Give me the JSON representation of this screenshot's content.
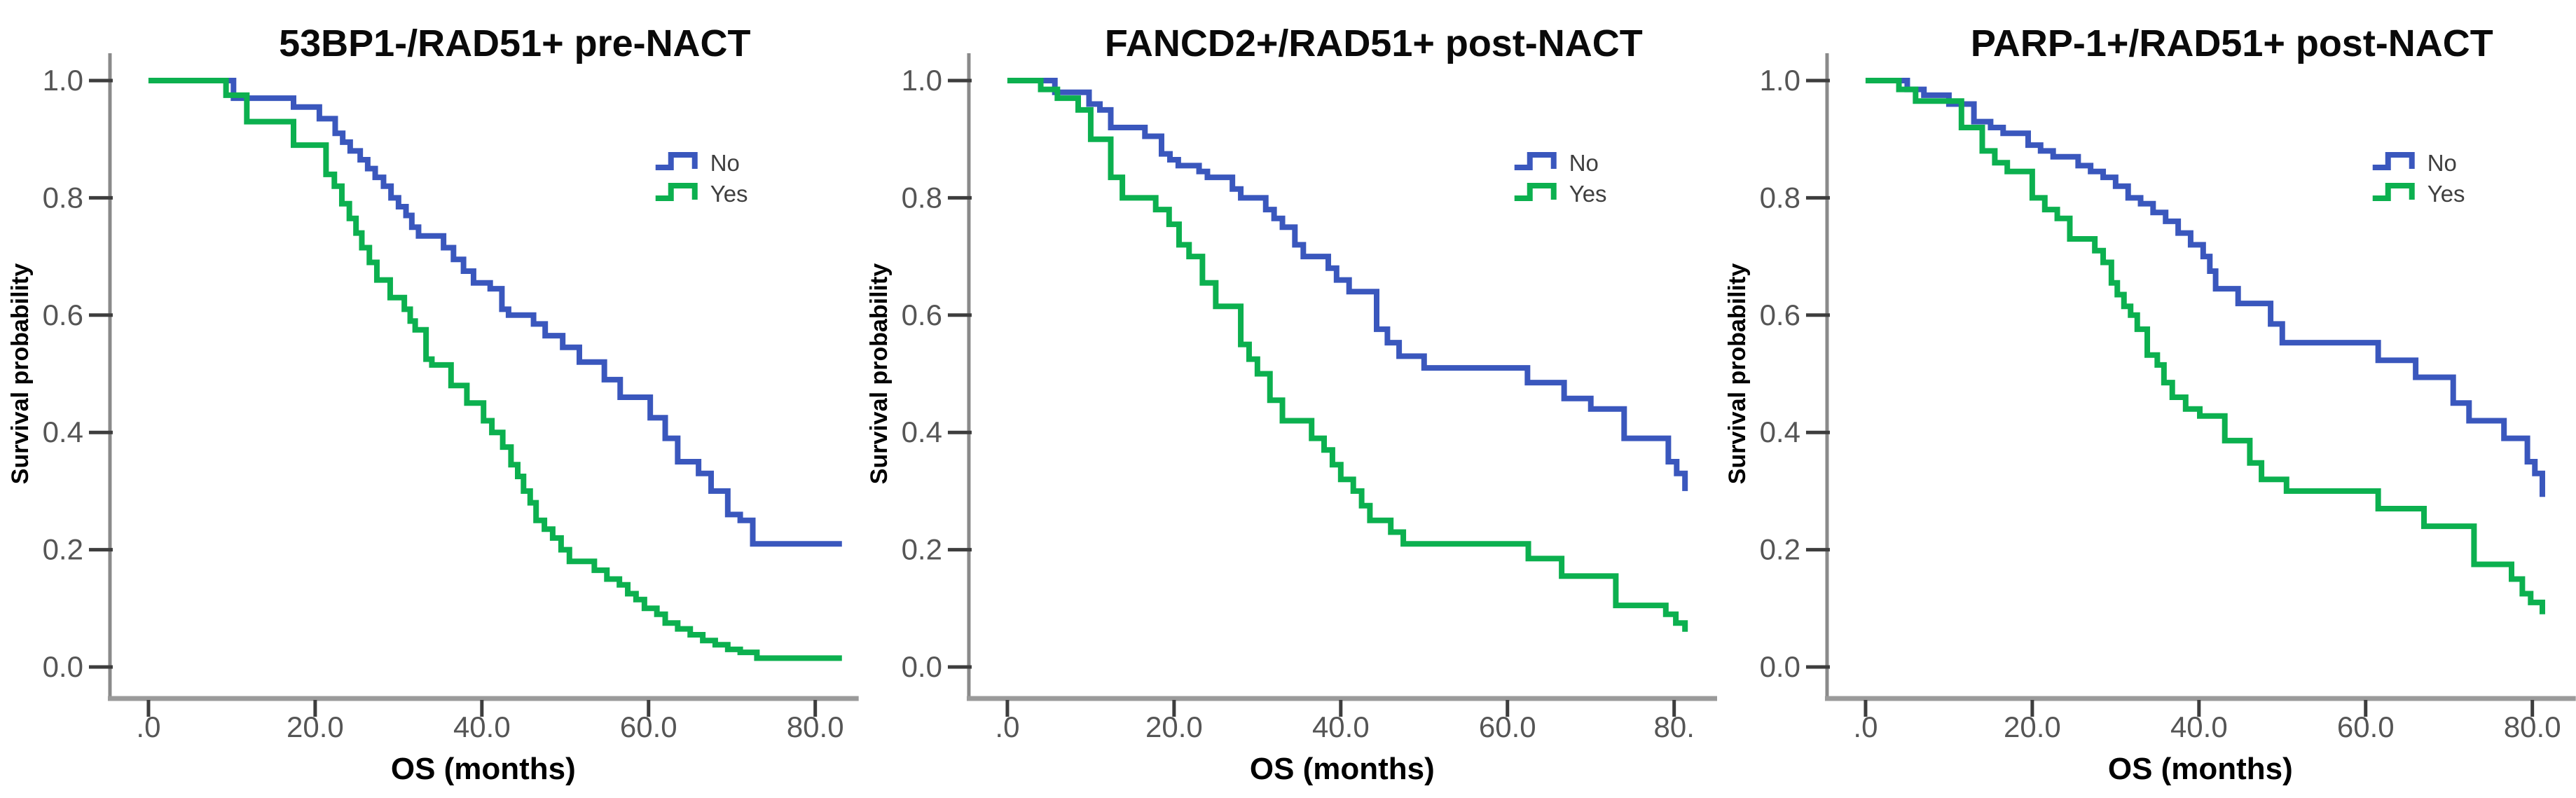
{
  "figure": {
    "description": "Three Kaplan-Meier overall-survival plots",
    "background": "#ffffff"
  },
  "colors": {
    "no_curve": "#3a57bd",
    "yes_curve": "#0cb04f",
    "x_axis_line": "#9a9a9a",
    "y_axis_line": "#8a8a8a",
    "tick_mark": "#3d3d3d",
    "tick_label": "#555555",
    "text": "#0a0a0a",
    "legend_text": "#3f3f3f"
  },
  "chart_data": [
    {
      "type": "line",
      "subtype": "kaplan-meier-step",
      "title": "53BP1-/RAD51+ pre-NACT",
      "xlabel": "OS (months)",
      "ylabel": "Survival probability",
      "xlim": [
        0,
        84
      ],
      "ylim": [
        0.0,
        1.0
      ],
      "grid": false,
      "legend_position": "upper-right-inside",
      "xticks": [
        {
          "v": 0,
          "label": ".0"
        },
        {
          "v": 20,
          "label": "20.0"
        },
        {
          "v": 40,
          "label": "40.0"
        },
        {
          "v": 60,
          "label": "60.0"
        },
        {
          "v": 80,
          "label": "80.0"
        }
      ],
      "yticks": [
        {
          "v": 0.0,
          "label": "0.0"
        },
        {
          "v": 0.2,
          "label": "0.2"
        },
        {
          "v": 0.4,
          "label": "0.4"
        },
        {
          "v": 0.6,
          "label": "0.6"
        },
        {
          "v": 0.8,
          "label": "0.8"
        },
        {
          "v": 1.0,
          "label": "1.0"
        }
      ],
      "series": [
        {
          "name": "No",
          "color": "#3a57bd",
          "points": [
            [
              0,
              1.0
            ],
            [
              10.2,
              0.97
            ],
            [
              17.4,
              0.955
            ],
            [
              20.5,
              0.935
            ],
            [
              22.4,
              0.91
            ],
            [
              23.3,
              0.895
            ],
            [
              24.2,
              0.88
            ],
            [
              25.4,
              0.865
            ],
            [
              26.3,
              0.85
            ],
            [
              27.2,
              0.835
            ],
            [
              28.2,
              0.82
            ],
            [
              29.1,
              0.8
            ],
            [
              30,
              0.785
            ],
            [
              30.9,
              0.77
            ],
            [
              31.6,
              0.75
            ],
            [
              32.4,
              0.735
            ],
            [
              35.4,
              0.715
            ],
            [
              36.6,
              0.695
            ],
            [
              37.8,
              0.675
            ],
            [
              39,
              0.655
            ],
            [
              41,
              0.645
            ],
            [
              42.4,
              0.61
            ],
            [
              43.2,
              0.6
            ],
            [
              46.2,
              0.585
            ],
            [
              47.6,
              0.565
            ],
            [
              49.7,
              0.545
            ],
            [
              51.7,
              0.52
            ],
            [
              54.7,
              0.49
            ],
            [
              56.6,
              0.46
            ],
            [
              60.2,
              0.425
            ],
            [
              62,
              0.39
            ],
            [
              63.5,
              0.35
            ],
            [
              66,
              0.33
            ],
            [
              67.5,
              0.3
            ],
            [
              69.5,
              0.26
            ],
            [
              71,
              0.25
            ],
            [
              72.5,
              0.21
            ],
            [
              83.2,
              0.21
            ]
          ]
        },
        {
          "name": "Yes",
          "color": "#0cb04f",
          "points": [
            [
              0,
              1.0
            ],
            [
              9.3,
              0.975
            ],
            [
              11.8,
              0.93
            ],
            [
              17.4,
              0.89
            ],
            [
              21.3,
              0.84
            ],
            [
              22.3,
              0.82
            ],
            [
              23.2,
              0.79
            ],
            [
              24.1,
              0.765
            ],
            [
              24.9,
              0.74
            ],
            [
              25.6,
              0.715
            ],
            [
              26.5,
              0.69
            ],
            [
              27.4,
              0.66
            ],
            [
              29,
              0.63
            ],
            [
              30.7,
              0.61
            ],
            [
              31.4,
              0.59
            ],
            [
              32,
              0.575
            ],
            [
              33.3,
              0.525
            ],
            [
              34,
              0.515
            ],
            [
              36.3,
              0.48
            ],
            [
              38.2,
              0.45
            ],
            [
              40.2,
              0.42
            ],
            [
              41.2,
              0.4
            ],
            [
              42.5,
              0.375
            ],
            [
              43.5,
              0.345
            ],
            [
              44.3,
              0.325
            ],
            [
              45,
              0.3
            ],
            [
              45.8,
              0.28
            ],
            [
              46.5,
              0.25
            ],
            [
              47.5,
              0.235
            ],
            [
              48.5,
              0.22
            ],
            [
              49.5,
              0.2
            ],
            [
              50.5,
              0.18
            ],
            [
              53.5,
              0.165
            ],
            [
              55,
              0.15
            ],
            [
              56.5,
              0.14
            ],
            [
              57.5,
              0.125
            ],
            [
              58.5,
              0.115
            ],
            [
              59.5,
              0.1
            ],
            [
              61,
              0.09
            ],
            [
              62,
              0.075
            ],
            [
              63.5,
              0.065
            ],
            [
              65,
              0.055
            ],
            [
              66.5,
              0.045
            ],
            [
              68,
              0.038
            ],
            [
              69.5,
              0.03
            ],
            [
              71,
              0.025
            ],
            [
              73,
              0.015
            ],
            [
              83.2,
              0.015
            ]
          ]
        }
      ],
      "legend": [
        {
          "label": "No",
          "series": "No"
        },
        {
          "label": "Yes",
          "series": "Yes"
        }
      ]
    },
    {
      "type": "line",
      "subtype": "kaplan-meier-step",
      "title": "FANCD2+/RAD51+ post-NACT",
      "xlabel": "OS (months)",
      "ylabel": "Survival probability",
      "xlim": [
        0,
        84
      ],
      "ylim": [
        0.0,
        1.0
      ],
      "grid": false,
      "legend_position": "upper-right-inside",
      "xticks": [
        {
          "v": 0,
          "label": ".0"
        },
        {
          "v": 20,
          "label": "20.0"
        },
        {
          "v": 40,
          "label": "40.0"
        },
        {
          "v": 60,
          "label": "60.0"
        },
        {
          "v": 80,
          "label": "80."
        }
      ],
      "yticks": [
        {
          "v": 0.0,
          "label": "0.0"
        },
        {
          "v": 0.2,
          "label": "0.2"
        },
        {
          "v": 0.4,
          "label": "0.4"
        },
        {
          "v": 0.6,
          "label": "0.6"
        },
        {
          "v": 0.8,
          "label": "0.8"
        },
        {
          "v": 1.0,
          "label": "1.0"
        }
      ],
      "series": [
        {
          "name": "No",
          "color": "#3a57bd",
          "points": [
            [
              0,
              1.0
            ],
            [
              5.7,
              0.98
            ],
            [
              9.8,
              0.96
            ],
            [
              11.1,
              0.95
            ],
            [
              12.4,
              0.92
            ],
            [
              16.5,
              0.905
            ],
            [
              18.5,
              0.875
            ],
            [
              19.5,
              0.865
            ],
            [
              20.5,
              0.855
            ],
            [
              23,
              0.845
            ],
            [
              24,
              0.835
            ],
            [
              27,
              0.815
            ],
            [
              28,
              0.8
            ],
            [
              31,
              0.78
            ],
            [
              32,
              0.765
            ],
            [
              33,
              0.75
            ],
            [
              34.5,
              0.72
            ],
            [
              35.5,
              0.7
            ],
            [
              38.5,
              0.68
            ],
            [
              39.5,
              0.66
            ],
            [
              41,
              0.64
            ],
            [
              44.3,
              0.576
            ],
            [
              45.6,
              0.553
            ],
            [
              47,
              0.53
            ],
            [
              50,
              0.51
            ],
            [
              62.4,
              0.485
            ],
            [
              66.8,
              0.458
            ],
            [
              70,
              0.44
            ],
            [
              74,
              0.39
            ],
            [
              79.3,
              0.35
            ],
            [
              80.3,
              0.33
            ],
            [
              81.3,
              0.3
            ]
          ]
        },
        {
          "name": "Yes",
          "color": "#0cb04f",
          "points": [
            [
              0,
              1.0
            ],
            [
              4,
              0.985
            ],
            [
              6,
              0.97
            ],
            [
              8.5,
              0.95
            ],
            [
              10,
              0.9
            ],
            [
              12.4,
              0.835
            ],
            [
              13.8,
              0.8
            ],
            [
              17.8,
              0.78
            ],
            [
              19.4,
              0.755
            ],
            [
              20.6,
              0.72
            ],
            [
              21.8,
              0.7
            ],
            [
              23.4,
              0.655
            ],
            [
              25,
              0.615
            ],
            [
              28,
              0.55
            ],
            [
              29,
              0.525
            ],
            [
              30,
              0.5
            ],
            [
              31.5,
              0.455
            ],
            [
              33,
              0.42
            ],
            [
              36.5,
              0.39
            ],
            [
              38,
              0.37
            ],
            [
              39,
              0.345
            ],
            [
              40,
              0.32
            ],
            [
              41.5,
              0.3
            ],
            [
              42.5,
              0.275
            ],
            [
              43.5,
              0.25
            ],
            [
              46,
              0.23
            ],
            [
              47.5,
              0.21
            ],
            [
              62.5,
              0.185
            ],
            [
              66.5,
              0.155
            ],
            [
              73,
              0.105
            ],
            [
              79,
              0.09
            ],
            [
              80.2,
              0.075
            ],
            [
              81.3,
              0.06
            ]
          ]
        }
      ],
      "legend": [
        {
          "label": "No",
          "series": "No"
        },
        {
          "label": "Yes",
          "series": "Yes"
        }
      ]
    },
    {
      "type": "line",
      "subtype": "kaplan-meier-step",
      "title": "PARP-1+/RAD51+ post-NACT",
      "xlabel": "OS (months)",
      "ylabel": "Survival probability",
      "xlim": [
        0,
        84
      ],
      "ylim": [
        0.0,
        1.0
      ],
      "grid": false,
      "legend_position": "upper-right-inside",
      "xticks": [
        {
          "v": 0,
          "label": ".0"
        },
        {
          "v": 20,
          "label": "20.0"
        },
        {
          "v": 40,
          "label": "40.0"
        },
        {
          "v": 60,
          "label": "60.0"
        },
        {
          "v": 80,
          "label": "80.0"
        }
      ],
      "yticks": [
        {
          "v": 0.0,
          "label": "0.0"
        },
        {
          "v": 0.2,
          "label": "0.2"
        },
        {
          "v": 0.4,
          "label": "0.4"
        },
        {
          "v": 0.6,
          "label": "0.6"
        },
        {
          "v": 0.8,
          "label": "0.8"
        },
        {
          "v": 1.0,
          "label": "1.0"
        }
      ],
      "series": [
        {
          "name": "No",
          "color": "#3a57bd",
          "points": [
            [
              0,
              1.0
            ],
            [
              5,
              0.985
            ],
            [
              7,
              0.975
            ],
            [
              10,
              0.96
            ],
            [
              13,
              0.93
            ],
            [
              15,
              0.92
            ],
            [
              16.5,
              0.91
            ],
            [
              19.5,
              0.89
            ],
            [
              21,
              0.88
            ],
            [
              22.5,
              0.87
            ],
            [
              25.5,
              0.855
            ],
            [
              27,
              0.845
            ],
            [
              28.5,
              0.835
            ],
            [
              30,
              0.82
            ],
            [
              31.5,
              0.8
            ],
            [
              33,
              0.79
            ],
            [
              34.5,
              0.775
            ],
            [
              36,
              0.76
            ],
            [
              37.5,
              0.74
            ],
            [
              39,
              0.72
            ],
            [
              40.5,
              0.7
            ],
            [
              41.3,
              0.675
            ],
            [
              42,
              0.645
            ],
            [
              44.7,
              0.62
            ],
            [
              48.6,
              0.585
            ],
            [
              50,
              0.553
            ],
            [
              61.5,
              0.523
            ],
            [
              66,
              0.494
            ],
            [
              70.5,
              0.45
            ],
            [
              72.4,
              0.42
            ],
            [
              76.6,
              0.39
            ],
            [
              79.4,
              0.35
            ],
            [
              80.3,
              0.33
            ],
            [
              81.2,
              0.29
            ]
          ]
        },
        {
          "name": "Yes",
          "color": "#0cb04f",
          "points": [
            [
              0,
              1.0
            ],
            [
              4,
              0.985
            ],
            [
              6,
              0.965
            ],
            [
              11.5,
              0.92
            ],
            [
              14,
              0.88
            ],
            [
              15.5,
              0.86
            ],
            [
              17,
              0.845
            ],
            [
              20,
              0.8
            ],
            [
              21.5,
              0.78
            ],
            [
              23,
              0.765
            ],
            [
              24.5,
              0.73
            ],
            [
              27.5,
              0.71
            ],
            [
              28.5,
              0.69
            ],
            [
              29.5,
              0.655
            ],
            [
              30.2,
              0.635
            ],
            [
              31,
              0.615
            ],
            [
              31.8,
              0.6
            ],
            [
              32.6,
              0.576
            ],
            [
              33.8,
              0.532
            ],
            [
              35,
              0.515
            ],
            [
              35.8,
              0.485
            ],
            [
              36.8,
              0.46
            ],
            [
              38.4,
              0.44
            ],
            [
              40.1,
              0.428
            ],
            [
              43.1,
              0.386
            ],
            [
              46.1,
              0.348
            ],
            [
              47.5,
              0.32
            ],
            [
              50.5,
              0.3
            ],
            [
              61.5,
              0.27
            ],
            [
              67,
              0.24
            ],
            [
              73,
              0.175
            ],
            [
              77.5,
              0.15
            ],
            [
              78.8,
              0.125
            ],
            [
              79.8,
              0.11
            ],
            [
              81.2,
              0.09
            ]
          ]
        }
      ],
      "legend": [
        {
          "label": "No",
          "series": "No"
        },
        {
          "label": "Yes",
          "series": "Yes"
        }
      ]
    }
  ]
}
